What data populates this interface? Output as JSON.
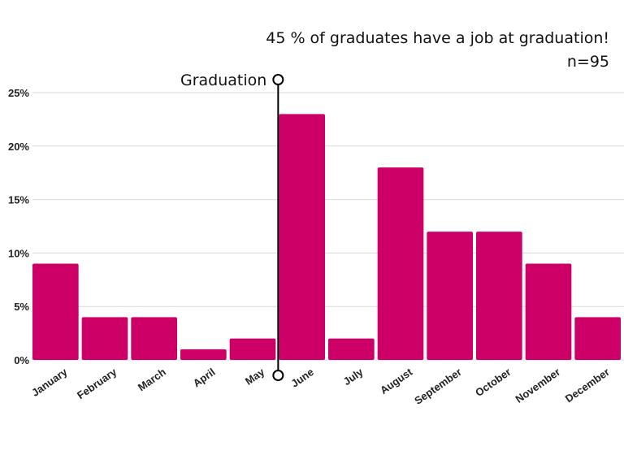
{
  "chart_data": {
    "type": "bar",
    "title": "45 % of graduates have a job at graduation!",
    "subtitle": "n=95",
    "xlabel": "",
    "ylabel": "",
    "categories": [
      "January",
      "February",
      "March",
      "April",
      "May",
      "June",
      "July",
      "August",
      "September",
      "October",
      "November",
      "December"
    ],
    "values": [
      9,
      4,
      4,
      1,
      2,
      23,
      2,
      18,
      12,
      12,
      9,
      4
    ],
    "unit": "%",
    "ylim": [
      0,
      25
    ],
    "yticks": [
      0,
      5,
      10,
      15,
      20,
      25
    ],
    "ytick_labels": [
      "0%",
      "5%",
      "10%",
      "15%",
      "20%",
      "25%"
    ],
    "grid": true,
    "legend": "none",
    "bar_color": "#cc0066",
    "annotation": {
      "label": "Graduation",
      "between": [
        "May",
        "June"
      ]
    }
  }
}
